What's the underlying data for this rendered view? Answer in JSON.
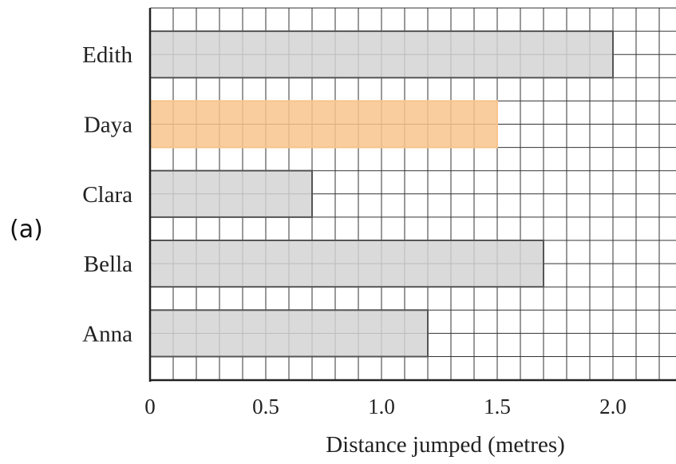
{
  "part_label": "(a)",
  "chart_data": {
    "type": "bar",
    "orientation": "horizontal",
    "categories": [
      "Edith",
      "Daya",
      "Clara",
      "Bella",
      "Anna"
    ],
    "values": [
      2.0,
      1.5,
      0.7,
      1.7,
      1.2
    ],
    "xlabel": "Distance jumped (metres)",
    "ylabel": "",
    "xlim": [
      0,
      2.25
    ],
    "x_ticks": [
      {
        "value": 0,
        "label": "0"
      },
      {
        "value": 0.5,
        "label": "0.5"
      },
      {
        "value": 1.0,
        "label": "1.0"
      },
      {
        "value": 1.5,
        "label": "1.5"
      },
      {
        "value": 2.0,
        "label": "2.0"
      }
    ],
    "grid_minor_step": 0.1,
    "grid": true,
    "bar_color": "#d3d3d3",
    "highlight_category": "Daya",
    "highlight_color": "#f8c48d",
    "grid_color": "#333333"
  }
}
